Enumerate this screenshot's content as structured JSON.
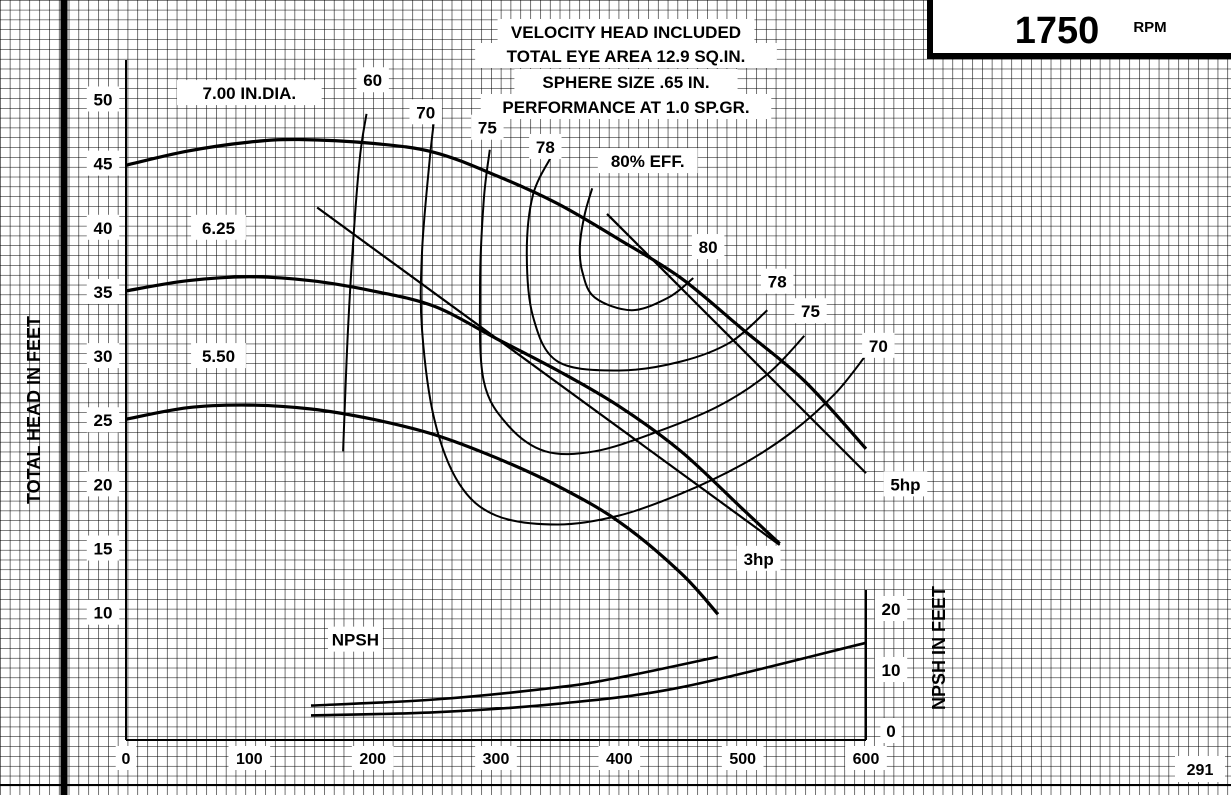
{
  "chart_data": {
    "type": "line",
    "rpm_value": "1750",
    "rpm_unit": "RPM",
    "notes": [
      "VELOCITY HEAD INCLUDED",
      "TOTAL EYE AREA 12.9 SQ.IN.",
      "SPHERE SIZE .65 IN.",
      "PERFORMANCE AT 1.0 SP.GR."
    ],
    "ylabel": "TOTAL HEAD IN FEET",
    "y2label": "NPSH IN FEET",
    "page_number": "291",
    "xlim": [
      0,
      600
    ],
    "ylim": [
      0,
      53
    ],
    "y2lim": [
      0,
      30
    ],
    "x_ticks": [
      0,
      100,
      200,
      300,
      400,
      500,
      600
    ],
    "y_ticks": [
      10,
      15,
      20,
      25,
      30,
      35,
      40,
      45,
      50
    ],
    "y2_ticks": [
      0,
      10,
      20
    ],
    "grid": true,
    "series": [
      {
        "name": "7.00 IN.DIA.",
        "x": [
          0,
          50,
          100,
          140,
          200,
          250,
          300,
          350,
          400,
          450,
          500,
          550,
          600
        ],
        "y": [
          44.8,
          45.9,
          46.6,
          46.8,
          46.5,
          45.8,
          44.0,
          41.8,
          39.0,
          36.0,
          32.0,
          28.0,
          22.7
        ]
      },
      {
        "name": "6.25",
        "x": [
          0,
          50,
          100,
          150,
          200,
          250,
          300,
          350,
          400,
          450,
          500,
          530
        ],
        "y": [
          35.0,
          35.8,
          36.1,
          35.8,
          35.0,
          33.8,
          31.3,
          28.8,
          26.0,
          22.5,
          18.0,
          15.3
        ]
      },
      {
        "name": "5.50",
        "x": [
          0,
          50,
          100,
          150,
          200,
          250,
          300,
          350,
          400,
          450,
          480
        ],
        "y": [
          25.0,
          25.9,
          26.1,
          25.8,
          25.0,
          23.8,
          22.0,
          19.8,
          17.0,
          13.0,
          9.8
        ]
      }
    ],
    "efficiency_curves": [
      {
        "label": "60",
        "x": [
          176,
          180,
          185,
          190,
          195
        ],
        "y": [
          22.5,
          32.0,
          40.0,
          45.7,
          48.8
        ]
      },
      {
        "label": "70",
        "x": [
          600,
          575,
          540,
          500,
          450,
          400,
          350,
          300,
          270,
          250,
          240,
          240,
          246,
          250
        ],
        "y": [
          30.0,
          27.0,
          24.0,
          21.5,
          19.2,
          17.5,
          16.8,
          17.5,
          20.0,
          25.0,
          32.0,
          38.0,
          45.0,
          48.5
        ]
      },
      {
        "label": "75",
        "x": [
          550,
          520,
          480,
          430,
          380,
          340,
          310,
          290,
          287,
          290,
          295
        ],
        "y": [
          31.5,
          28.5,
          26.0,
          24.0,
          22.5,
          22.5,
          24.5,
          28.0,
          35.0,
          42.0,
          46.0
        ]
      },
      {
        "label": "78",
        "x": [
          520,
          490,
          450,
          400,
          350,
          330,
          325,
          330,
          345
        ],
        "y": [
          33.5,
          31.0,
          29.5,
          28.8,
          29.5,
          33.0,
          38.0,
          42.5,
          45.5
        ]
      },
      {
        "label": "80",
        "x": [
          460,
          440,
          410,
          380,
          370,
          368,
          372,
          378
        ],
        "y": [
          36.0,
          34.5,
          33.5,
          34.5,
          36.5,
          38.5,
          41.0,
          43.0
        ]
      }
    ],
    "efficiency_label": "80% EFF.",
    "hp_lines": [
      {
        "label": "3hp",
        "x": [
          155,
          530
        ],
        "y": [
          41.5,
          15.2
        ]
      },
      {
        "label": "5hp",
        "x": [
          390,
          600
        ],
        "y": [
          41.0,
          20.8
        ]
      }
    ],
    "npsh_label": "NPSH",
    "npsh_curves": [
      {
        "x": [
          150,
          250,
          350,
          400,
          480
        ],
        "y2": [
          4.0,
          5.0,
          7.0,
          8.6,
          12.0
        ]
      },
      {
        "x": [
          150,
          250,
          350,
          450,
          600
        ],
        "y2": [
          2.4,
          2.9,
          4.3,
          7.0,
          14.3
        ]
      }
    ]
  }
}
